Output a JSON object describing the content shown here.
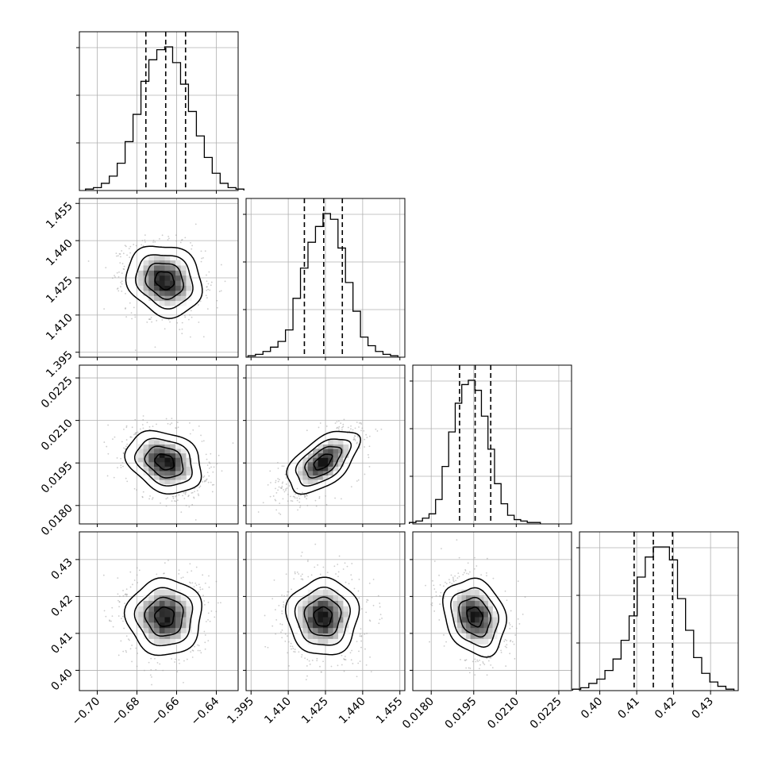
{
  "chart_data": {
    "type": "corner",
    "grid": true,
    "legend": "none",
    "colors": {
      "points": "#9a9a9a",
      "contour": "#000000",
      "hist": "#000000",
      "grid": "#b0b0b0",
      "axes": "#000000"
    },
    "parameters": [
      {
        "range": [
          -0.709,
          -0.629
        ],
        "ticks": [
          "−0.70",
          "−0.68",
          "−0.66",
          "−0.64"
        ],
        "tick_values": [
          -0.7,
          -0.68,
          -0.66,
          -0.64
        ],
        "mean": -0.666,
        "sigma": 0.0095,
        "quantiles": [
          -0.6755,
          -0.6655,
          -0.6555
        ],
        "hist_counts": [
          0.01,
          0.02,
          0.05,
          0.1,
          0.19,
          0.34,
          0.53,
          0.76,
          0.91,
          0.98,
          1.0,
          0.89,
          0.74,
          0.55,
          0.38,
          0.23,
          0.12,
          0.05,
          0.02,
          0.01
        ]
      },
      {
        "range": [
          1.393,
          1.457
        ],
        "ticks": [
          "1.395",
          "1.410",
          "1.425",
          "1.440",
          "1.455"
        ],
        "tick_values": [
          1.395,
          1.41,
          1.425,
          1.44,
          1.455
        ],
        "mean": 1.424,
        "sigma": 0.0072,
        "quantiles": [
          1.4165,
          1.4243,
          1.4318
        ],
        "hist_counts": [
          0.01,
          0.02,
          0.04,
          0.07,
          0.11,
          0.19,
          0.41,
          0.62,
          0.8,
          0.91,
          1.0,
          0.96,
          0.76,
          0.52,
          0.32,
          0.14,
          0.08,
          0.04,
          0.02,
          0.01
        ]
      },
      {
        "range": [
          0.01735,
          0.02295
        ],
        "ticks": [
          "0.0180",
          "0.0195",
          "0.0210",
          "0.0225"
        ],
        "tick_values": [
          0.018,
          0.0195,
          0.021,
          0.0225
        ],
        "mean": 0.01954,
        "sigma": 0.00055,
        "quantiles": [
          0.019,
          0.01955,
          0.0201
        ],
        "hist_counts": [
          0.01,
          0.02,
          0.04,
          0.07,
          0.17,
          0.4,
          0.64,
          0.84,
          0.97,
          1.0,
          0.93,
          0.75,
          0.52,
          0.28,
          0.14,
          0.06,
          0.03,
          0.02,
          0.01,
          0.01
        ]
      },
      {
        "range": [
          0.3945,
          0.4375
        ],
        "ticks": [
          "0.40",
          "0.41",
          "0.42",
          "0.43"
        ],
        "tick_values": [
          0.4,
          0.41,
          0.42,
          0.43
        ],
        "mean": 0.4145,
        "sigma": 0.0052,
        "quantiles": [
          0.4093,
          0.4145,
          0.4197
        ],
        "hist_counts": [
          0.01,
          0.02,
          0.05,
          0.08,
          0.14,
          0.22,
          0.35,
          0.52,
          0.79,
          0.93,
          1.0,
          1.0,
          0.91,
          0.64,
          0.42,
          0.23,
          0.12,
          0.06,
          0.03,
          0.01
        ]
      }
    ],
    "correlations": [
      {
        "row": 1,
        "col": 0,
        "rho": -0.15
      },
      {
        "row": 2,
        "col": 0,
        "rho": -0.25
      },
      {
        "row": 2,
        "col": 1,
        "rho": 0.55
      },
      {
        "row": 3,
        "col": 0,
        "rho": 0.0
      },
      {
        "row": 3,
        "col": 1,
        "rho": 0.0
      },
      {
        "row": 3,
        "col": 2,
        "rho": -0.2
      }
    ],
    "contour_levels_sigma": [
      0.5,
      1.0,
      1.5,
      2.0
    ]
  }
}
